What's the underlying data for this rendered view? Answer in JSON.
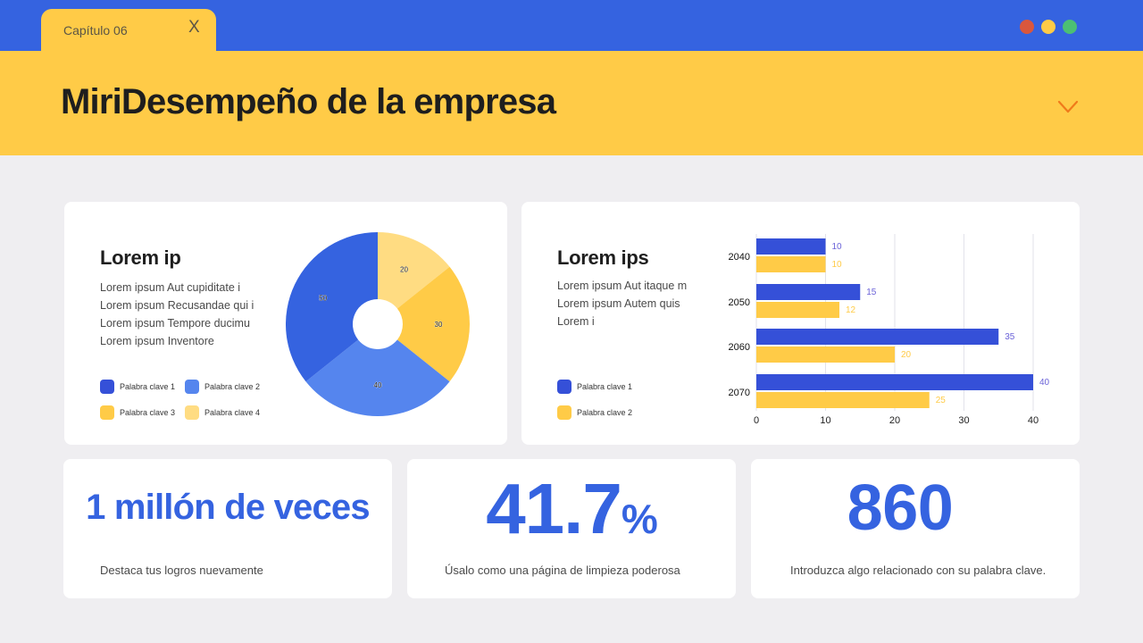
{
  "window": {
    "tab_label": "Capítulo 06",
    "tab_close": "X",
    "dots": [
      {
        "name": "close-dot",
        "color": "#d9573d"
      },
      {
        "name": "minimize-dot",
        "color": "#ffcb47"
      },
      {
        "name": "maximize-dot",
        "color": "#4cbf74"
      }
    ]
  },
  "header": {
    "title": "MiriDesempeño de la empresa",
    "chevron_color": "#f07a1a"
  },
  "colors": {
    "topbar": "#3563e0",
    "header": "#ffcb47",
    "accent_blue": "#3563e0",
    "bar_blue": "#3550d8",
    "bar_yellow": "#ffcb47"
  },
  "card1": {
    "title": "Lorem ip",
    "body": [
      "Lorem ipsum Aut cupiditate i",
      "Lorem ipsum Recusandae qui i",
      "Lorem ipsum Tempore ducimu",
      "Lorem ipsum Inventore"
    ],
    "legend": [
      {
        "label": "Palabra clave 1",
        "color": "#3550d8"
      },
      {
        "label": "Palabra clave 2",
        "color": "#5585ee"
      },
      {
        "label": "Palabra clave 3",
        "color": "#ffcb47"
      },
      {
        "label": "Palabra clave 4",
        "color": "#ffdc82"
      }
    ]
  },
  "card2": {
    "title": "Lorem ips",
    "body": [
      "Lorem ipsum Aut itaque m",
      "Lorem ipsum Autem quis",
      "Lorem i"
    ],
    "legend": [
      {
        "label": "Palabra clave 1",
        "color": "#3550d8"
      },
      {
        "label": "Palabra clave 2",
        "color": "#ffcb47"
      }
    ]
  },
  "stats": [
    {
      "value": "1 millón de veces",
      "caption": "Destaca tus logros nuevamente"
    },
    {
      "value": "41.7",
      "suffix": "%",
      "caption": "Úsalo como una página de limpieza poderosa"
    },
    {
      "value": "860",
      "caption": "Introduzca algo relacionado con su palabra clave."
    }
  ],
  "chart_data": [
    {
      "type": "pie",
      "subtype": "donut",
      "title": "",
      "categories": [
        "Palabra clave 4",
        "Palabra clave 3",
        "Palabra clave 2",
        "Palabra clave 1"
      ],
      "values": [
        20,
        30,
        40,
        50
      ],
      "colors": [
        "#ffdc82",
        "#ffcb47",
        "#5585ee",
        "#3563e0"
      ],
      "start_angle": "top, clockwise",
      "data_labels": true
    },
    {
      "type": "bar",
      "orientation": "horizontal",
      "title": "",
      "categories": [
        "2040",
        "2050",
        "2060",
        "2070"
      ],
      "series": [
        {
          "name": "Palabra clave 1",
          "values": [
            10,
            15,
            35,
            40
          ],
          "color": "#3550d8",
          "label_color": "#6b63d8"
        },
        {
          "name": "Palabra clave 2",
          "values": [
            10,
            12,
            20,
            25
          ],
          "color": "#ffcb47",
          "label_color": "#ffcb47"
        }
      ],
      "xlabel": "",
      "ylabel": "",
      "xlim": [
        0,
        40
      ],
      "xticks": [
        0,
        10,
        20,
        30,
        40
      ],
      "grid": "vertical",
      "data_labels": true
    }
  ]
}
